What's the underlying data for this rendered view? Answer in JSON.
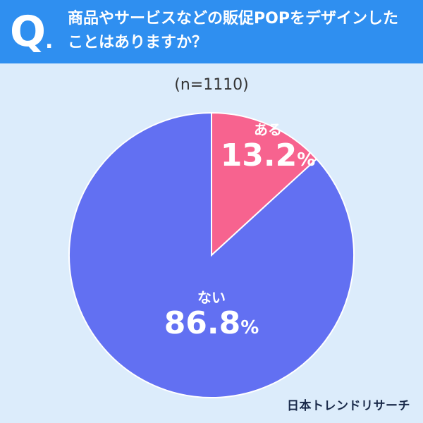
{
  "header": {
    "q_mark": "Q",
    "q_dot": ".",
    "question": "商品やサービスなどの販促POPをデザインしたことはありますか？"
  },
  "n_label": "(n=1110)",
  "brand": "日本トレンドリサーチ",
  "colors": {
    "header_bg": "#2f8ff0",
    "background": "#dcecfb",
    "slice_yes": "#f7638f",
    "slice_no": "#6270f2"
  },
  "chart_data": {
    "type": "pie",
    "categories": [
      "ある",
      "ない"
    ],
    "values": [
      13.2,
      86.8
    ],
    "value_labels": [
      "13.2",
      "86.8"
    ],
    "unit": "%",
    "colors": [
      "#f7638f",
      "#6270f2"
    ],
    "start_angle_deg": 0,
    "direction": "clockwise",
    "n": 1110
  }
}
